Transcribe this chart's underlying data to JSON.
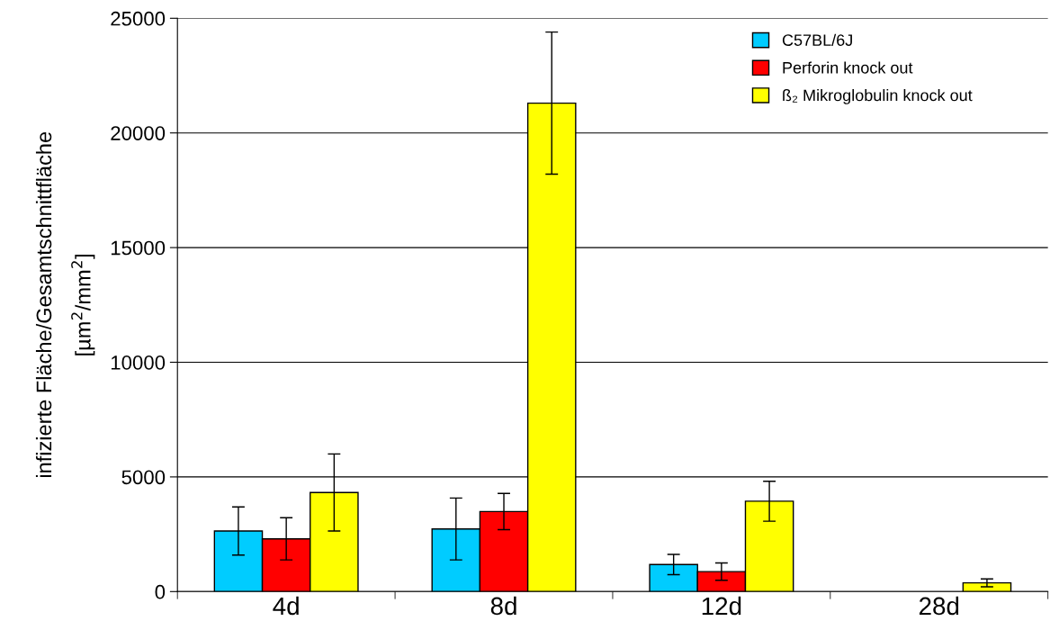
{
  "chart_data": {
    "type": "bar",
    "ylabel": "infizierte Fläche/Gesamtschnittfläche\n[µm$^{2}$/mm$^{2}$]",
    "categories": [
      "4d",
      "8d",
      "12d",
      "28d"
    ],
    "series": [
      {
        "name": "C57BL/6J",
        "color": "#00ccff",
        "values": [
          2640,
          2730,
          1180,
          null
        ],
        "errors": [
          1050,
          1350,
          440,
          null
        ]
      },
      {
        "name": "Perforin knock out",
        "color": "#ff0000",
        "values": [
          2300,
          3490,
          870,
          null
        ],
        "errors": [
          920,
          790,
          380,
          null
        ]
      },
      {
        "name": "ß₂ Mikroglobulin knock out",
        "color": "#ffff00",
        "values": [
          4320,
          21300,
          3940,
          380
        ],
        "errors": [
          1680,
          3100,
          870,
          170
        ]
      }
    ],
    "ylim": [
      0,
      25000
    ],
    "yticks": [
      0,
      5000,
      10000,
      15000,
      20000,
      25000
    ],
    "grid": "y",
    "legend": "top right"
  }
}
